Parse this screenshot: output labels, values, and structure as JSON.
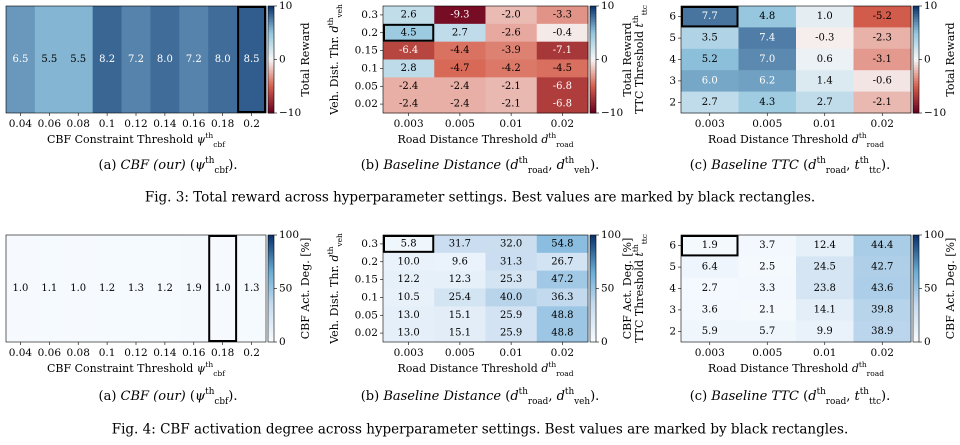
{
  "fig3": {
    "caption": "Fig. 3: Total reward across hyperparameter settings. Best values are marked by black rectangles.",
    "colorbar": {
      "label": "Total Reward",
      "ticks": [
        "10",
        "0",
        "−10"
      ],
      "vmin": -10,
      "vmax": 10
    },
    "subcaptions": [
      {
        "label": "(a)",
        "name": "CBF (our)",
        "params": "(ψ_cbf^th)."
      },
      {
        "label": "(b)",
        "name": "Baseline Distance",
        "params": "(d_road^th, d_veh^th)."
      },
      {
        "label": "(c)",
        "name": "Baseline TTC",
        "params": "(d_road^th, t_ttc^th)."
      }
    ]
  },
  "fig4": {
    "caption": "Fig. 4: CBF activation degree across hyperparameter settings. Best values are marked by black rectangles.",
    "colorbar": {
      "label": "CBF Act. Deg. [%]",
      "ticks": [
        "100",
        "50",
        "0"
      ],
      "vmin": 0,
      "vmax": 100
    },
    "subcaptions": [
      {
        "label": "(a)",
        "name": "CBF (our)",
        "params": "(ψ_cbf^th)."
      },
      {
        "label": "(b)",
        "name": "Baseline Distance",
        "params": "(d_road^th, d_veh^th)."
      },
      {
        "label": "(c)",
        "name": "Baseline TTC",
        "params": "(d_road^th, t_ttc^th)."
      }
    ]
  },
  "chart_data": [
    {
      "type": "heatmap",
      "figure": "Fig. 3 (a)",
      "xlabel": "CBF Constraint Threshold ψ_cbf^th",
      "ylabel": "",
      "x_ticks": [
        "0.04",
        "0.06",
        "0.08",
        "0.1",
        "0.12",
        "0.14",
        "0.16",
        "0.18",
        "0.2"
      ],
      "values": [
        6.5,
        5.5,
        5.5,
        8.2,
        7.2,
        8.0,
        7.2,
        8.0,
        8.5
      ],
      "best": {
        "col": 8
      },
      "cbar_label": "Total Reward",
      "vmin": -10,
      "vmax": 10
    },
    {
      "type": "heatmap",
      "figure": "Fig. 3 (b)",
      "xlabel": "Road Distance Threshold d_road^th",
      "ylabel": "Veh. Dist. Thr. d_veh^th",
      "x_ticks": [
        "0.003",
        "0.005",
        "0.01",
        "0.02"
      ],
      "y_ticks": [
        "0.3",
        "0.2",
        "0.15",
        "0.1",
        "0.05",
        "0.02"
      ],
      "values": [
        [
          "2.6",
          "-9.3",
          "-2.0",
          "-3.3"
        ],
        [
          "4.5",
          "2.7",
          "-2.6",
          "-0.4"
        ],
        [
          "-6.4",
          "-4.4",
          "-3.9",
          "-7.1"
        ],
        [
          "2.8",
          "-4.7",
          "-4.2",
          "-4.5"
        ],
        [
          "-2.4",
          "-2.4",
          "-2.1",
          "-6.8"
        ],
        [
          "-2.4",
          "-2.4",
          "-2.1",
          "-6.8"
        ]
      ],
      "best": {
        "row": 1,
        "col": 0
      },
      "cbar_label": "Total Reward",
      "vmin": -10,
      "vmax": 10
    },
    {
      "type": "heatmap",
      "figure": "Fig. 3 (c)",
      "xlabel": "Road Distance Threshold d_road^th",
      "ylabel": "TTC Threshold t_ttc^th",
      "x_ticks": [
        "0.003",
        "0.005",
        "0.01",
        "0.02"
      ],
      "y_ticks": [
        "6",
        "5",
        "4",
        "3",
        "2"
      ],
      "values": [
        [
          "7.7",
          "4.8",
          "1.0",
          "-5.2"
        ],
        [
          "3.5",
          "7.4",
          "-0.3",
          "-2.3"
        ],
        [
          "5.2",
          "7.0",
          "0.6",
          "-3.1"
        ],
        [
          "6.0",
          "6.2",
          "1.4",
          "-0.6"
        ],
        [
          "2.7",
          "4.3",
          "2.7",
          "-2.1"
        ]
      ],
      "best": {
        "row": 0,
        "col": 0
      },
      "cbar_label": "Total Reward",
      "vmin": -10,
      "vmax": 10
    },
    {
      "type": "heatmap",
      "figure": "Fig. 4 (a)",
      "xlabel": "CBF Constraint Threshold ψ_cbf^th",
      "ylabel": "",
      "x_ticks": [
        "0.04",
        "0.06",
        "0.08",
        "0.1",
        "0.12",
        "0.14",
        "0.16",
        "0.18",
        "0.2"
      ],
      "values": [
        1.0,
        1.1,
        1.0,
        1.2,
        1.3,
        1.2,
        1.9,
        1.0,
        1.3
      ],
      "best": {
        "col": 7
      },
      "cbar_label": "CBF Act. Deg. [%]",
      "vmin": 0,
      "vmax": 100
    },
    {
      "type": "heatmap",
      "figure": "Fig. 4 (b)",
      "xlabel": "Road Distance Threshold d_road^th",
      "ylabel": "Veh. Dist. Thr. d_veh^th",
      "x_ticks": [
        "0.003",
        "0.005",
        "0.01",
        "0.02"
      ],
      "y_ticks": [
        "0.3",
        "0.2",
        "0.15",
        "0.1",
        "0.05",
        "0.02"
      ],
      "values": [
        [
          "5.8",
          "31.7",
          "32.0",
          "54.8"
        ],
        [
          "10.0",
          "9.6",
          "31.3",
          "26.7"
        ],
        [
          "12.2",
          "12.3",
          "25.3",
          "47.2"
        ],
        [
          "10.5",
          "25.4",
          "40.0",
          "36.3"
        ],
        [
          "13.0",
          "15.1",
          "25.9",
          "48.8"
        ],
        [
          "13.0",
          "15.1",
          "25.9",
          "48.8"
        ]
      ],
      "best": {
        "row": 0,
        "col": 0
      },
      "cbar_label": "CBF Act. Deg. [%]",
      "vmin": 0,
      "vmax": 100
    },
    {
      "type": "heatmap",
      "figure": "Fig. 4 (c)",
      "xlabel": "Road Distance Threshold d_road^th",
      "ylabel": "TTC Threshold t_ttc^th",
      "x_ticks": [
        "0.003",
        "0.005",
        "0.01",
        "0.02"
      ],
      "y_ticks": [
        "6",
        "5",
        "4",
        "3",
        "2"
      ],
      "values": [
        [
          "1.9",
          "3.7",
          "12.4",
          "44.4"
        ],
        [
          "6.4",
          "2.5",
          "24.5",
          "42.7"
        ],
        [
          "2.7",
          "3.3",
          "23.8",
          "43.6"
        ],
        [
          "3.6",
          "2.1",
          "14.1",
          "39.8"
        ],
        [
          "5.9",
          "5.7",
          "9.9",
          "38.9"
        ]
      ],
      "best": {
        "row": 0,
        "col": 0
      },
      "cbar_label": "CBF Act. Deg. [%]",
      "vmin": 0,
      "vmax": 100
    }
  ]
}
